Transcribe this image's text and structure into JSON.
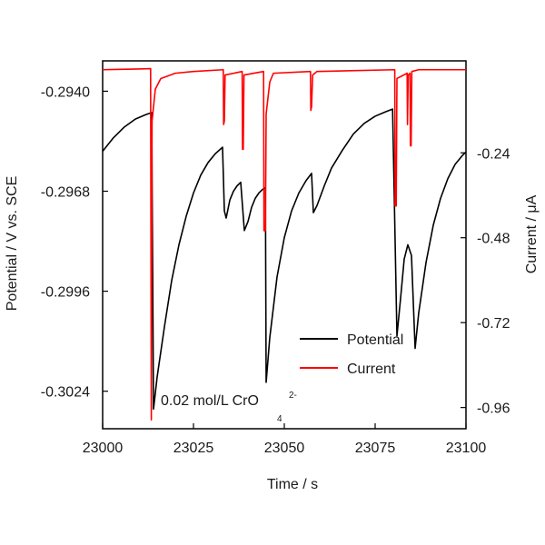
{
  "chart_data": {
    "type": "line",
    "title": "",
    "xlabel": "Time / s",
    "ylabel_left": "Potential / V vs. SCE",
    "ylabel_right": "Current / μA",
    "xlim": [
      23000,
      23100
    ],
    "ylim_left": [
      -0.30345,
      -0.29315
    ],
    "ylim_right": [
      -1.02,
      0.02
    ],
    "x_ticks": [
      23000,
      23025,
      23050,
      23075,
      23100
    ],
    "x_tick_labels": [
      "23000",
      "23025",
      "23050",
      "23075",
      "23100"
    ],
    "y_left_ticks": [
      -0.294,
      -0.2968,
      -0.2996,
      -0.3024
    ],
    "y_left_tick_labels": [
      "-0.2940",
      "-0.2968",
      "-0.2996",
      "-0.3024"
    ],
    "y_right_ticks": [
      -0.24,
      -0.48,
      -0.72,
      -0.96
    ],
    "y_right_tick_labels": [
      "-0.24",
      "-0.48",
      "-0.72",
      "-0.96"
    ],
    "annotation": {
      "text": "0.02 mol/L CrO",
      "superscript": "2-",
      "subscript": "4"
    },
    "legend": {
      "placement": "lower-right"
    },
    "series": [
      {
        "name": "Potential",
        "axis": "left",
        "color": "#000000",
        "points": [
          [
            23000,
            -0.29568
          ],
          [
            23003,
            -0.2953
          ],
          [
            23006,
            -0.295
          ],
          [
            23009,
            -0.29478
          ],
          [
            23012,
            -0.29465
          ],
          [
            23013.5,
            -0.2946
          ],
          [
            23014,
            -0.3029
          ],
          [
            23015,
            -0.302
          ],
          [
            23017,
            -0.3006
          ],
          [
            23019,
            -0.2993
          ],
          [
            23021,
            -0.2983
          ],
          [
            23023,
            -0.2975
          ],
          [
            23025,
            -0.29685
          ],
          [
            23027,
            -0.29635
          ],
          [
            23029,
            -0.296
          ],
          [
            23031,
            -0.29575
          ],
          [
            23033,
            -0.29557
          ],
          [
            23033.5,
            -0.29735
          ],
          [
            23034,
            -0.29755
          ],
          [
            23035,
            -0.29705
          ],
          [
            23036,
            -0.2968
          ],
          [
            23037,
            -0.29665
          ],
          [
            23038,
            -0.29655
          ],
          [
            23039,
            -0.2979
          ],
          [
            23040,
            -0.29765
          ],
          [
            23041,
            -0.29725
          ],
          [
            23042,
            -0.297
          ],
          [
            23043,
            -0.29685
          ],
          [
            23044,
            -0.29675
          ],
          [
            23044.8,
            -0.2967
          ],
          [
            23045,
            -0.30215
          ],
          [
            23046,
            -0.3009
          ],
          [
            23048,
            -0.2992
          ],
          [
            23050,
            -0.2981
          ],
          [
            23052,
            -0.29735
          ],
          [
            23054,
            -0.29685
          ],
          [
            23056,
            -0.2965
          ],
          [
            23057.5,
            -0.2963
          ],
          [
            23058,
            -0.2974
          ],
          [
            23059,
            -0.2972
          ],
          [
            23061,
            -0.29665
          ],
          [
            23063,
            -0.29615
          ],
          [
            23066,
            -0.29565
          ],
          [
            23069,
            -0.2952
          ],
          [
            23072,
            -0.2949
          ],
          [
            23075,
            -0.2947
          ],
          [
            23078,
            -0.29457
          ],
          [
            23079.8,
            -0.2945
          ],
          [
            23081,
            -0.30085
          ],
          [
            23082,
            -0.2998
          ],
          [
            23083,
            -0.2987
          ],
          [
            23084,
            -0.2983
          ],
          [
            23085,
            -0.2986
          ],
          [
            23086,
            -0.3012
          ],
          [
            23087,
            -0.3002
          ],
          [
            23089,
            -0.2988
          ],
          [
            23091,
            -0.29775
          ],
          [
            23093,
            -0.297
          ],
          [
            23095,
            -0.29645
          ],
          [
            23097,
            -0.29605
          ],
          [
            23099,
            -0.2958
          ],
          [
            23100,
            -0.2957
          ]
        ]
      },
      {
        "name": "Current",
        "axis": "right",
        "color": "#ff0000",
        "points": [
          [
            23000,
            -0.005
          ],
          [
            23010,
            -0.003
          ],
          [
            23013.2,
            -0.002
          ],
          [
            23013.4,
            -0.995
          ],
          [
            23013.6,
            -0.15
          ],
          [
            23014.5,
            -0.06
          ],
          [
            23016,
            -0.03
          ],
          [
            23020,
            -0.015
          ],
          [
            23025,
            -0.01
          ],
          [
            23033.2,
            -0.005
          ],
          [
            23033.3,
            -0.16
          ],
          [
            23033.5,
            -0.15
          ],
          [
            23033.7,
            -0.02
          ],
          [
            23038.4,
            -0.01
          ],
          [
            23038.5,
            -0.23
          ],
          [
            23038.7,
            -0.23
          ],
          [
            23038.9,
            -0.02
          ],
          [
            23044.3,
            -0.01
          ],
          [
            23044.4,
            -0.46
          ],
          [
            23044.8,
            -0.46
          ],
          [
            23045,
            -0.13
          ],
          [
            23046,
            -0.04
          ],
          [
            23047,
            -0.015
          ],
          [
            23057.2,
            -0.01
          ],
          [
            23057.3,
            -0.12
          ],
          [
            23057.5,
            -0.11
          ],
          [
            23057.8,
            -0.02
          ],
          [
            23059,
            -0.01
          ],
          [
            23080.4,
            -0.005
          ],
          [
            23080.5,
            -0.39
          ],
          [
            23080.8,
            -0.39
          ],
          [
            23081,
            -0.03
          ],
          [
            23083.8,
            -0.015
          ],
          [
            23083.9,
            -0.16
          ],
          [
            23084.1,
            -0.02
          ],
          [
            23084.6,
            -0.015
          ],
          [
            23084.7,
            -0.22
          ],
          [
            23084.9,
            -0.22
          ],
          [
            23085.1,
            -0.01
          ],
          [
            23087,
            -0.005
          ],
          [
            23100,
            -0.005
          ]
        ]
      }
    ]
  }
}
